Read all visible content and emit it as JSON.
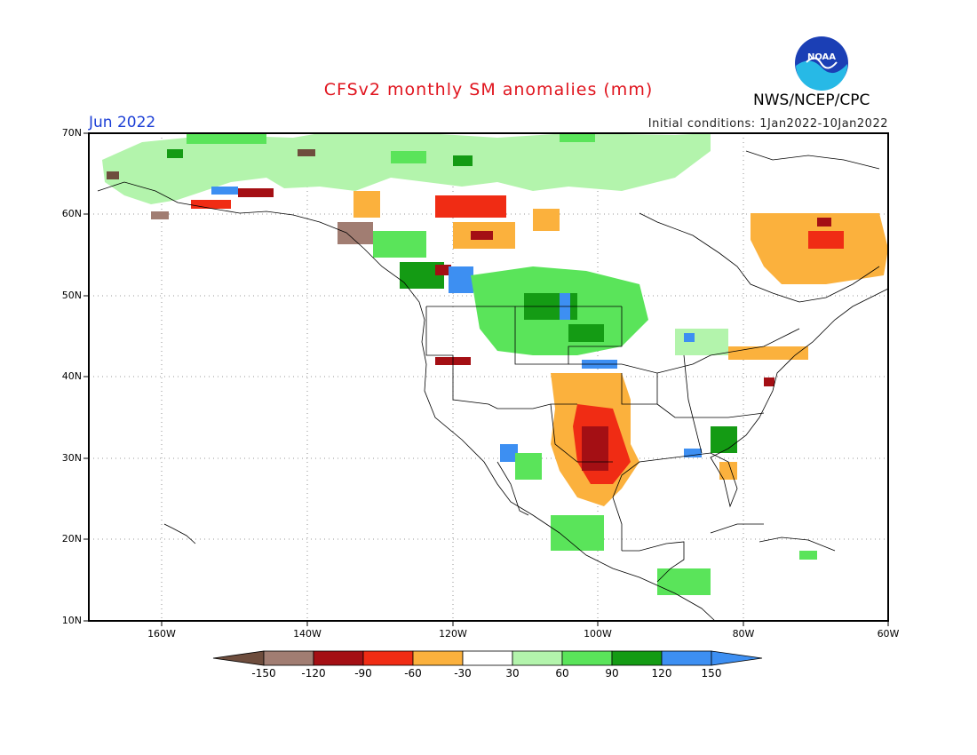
{
  "header": {
    "title": "CFSv2 monthly SM anomalies (mm)",
    "month": "Jun 2022",
    "initial_conditions": "Initial conditions: 1Jan2022-10Jan2022",
    "agency": "NWS/NCEP/CPC",
    "logo_text": "NOAA"
  },
  "axes": {
    "lat_labels": [
      "70N",
      "60N",
      "50N",
      "40N",
      "30N",
      "20N",
      "10N"
    ],
    "lon_labels": [
      "160W",
      "140W",
      "120W",
      "100W",
      "80W",
      "60W"
    ]
  },
  "colorbar": {
    "labels": [
      "-150",
      "-120",
      "-90",
      "-60",
      "-30",
      "30",
      "60",
      "90",
      "120",
      "150"
    ],
    "colors": [
      "#6e4d3d",
      "#a17d72",
      "#a40f14",
      "#f02c14",
      "#fbb13d",
      "#ffffff",
      "#b3f4ac",
      "#5ae45a",
      "#149b14",
      "#3d8ff2",
      "#3d8ff2"
    ]
  }
}
